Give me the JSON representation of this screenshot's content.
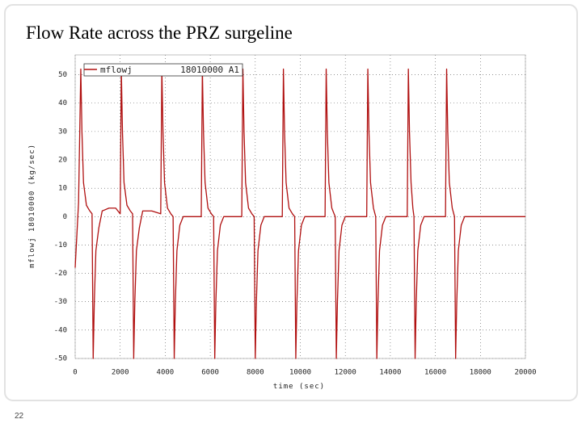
{
  "chart_data": {
    "type": "line",
    "title": "Flow Rate across the PRZ surgeline",
    "page_number": "22",
    "x_label": "time (sec)",
    "y_label": "mflowj 18010000 (kg/sec)",
    "legend_variable": "mflowj",
    "legend_component": "18010000 A1",
    "xlim": [
      0,
      20000
    ],
    "ylim": [
      -50,
      57
    ],
    "xticks": [
      0,
      2000,
      4000,
      6000,
      8000,
      10000,
      12000,
      14000,
      16000,
      18000,
      20000
    ],
    "yticks": [
      -50,
      -40,
      -30,
      -20,
      -10,
      0,
      10,
      20,
      30,
      40,
      50
    ],
    "grid": true,
    "series": [
      {
        "name": "mflowj",
        "color": "#b01010",
        "x": [
          0,
          150,
          250,
          300,
          370,
          500,
          650,
          750,
          800,
          850,
          920,
          1050,
          1200,
          1500,
          1800,
          2000,
          2050,
          2100,
          2170,
          2300,
          2450,
          2550,
          2600,
          2650,
          2720,
          2850,
          3000,
          3400,
          3800,
          3850,
          3900,
          3970,
          4100,
          4250,
          4350,
          4400,
          4450,
          4520,
          4650,
          4800,
          5600,
          5650,
          5700,
          5770,
          5900,
          6050,
          6150,
          6200,
          6250,
          6320,
          6450,
          6600,
          7400,
          7450,
          7500,
          7570,
          7700,
          7850,
          7950,
          8000,
          8050,
          8120,
          8250,
          8400,
          9200,
          9250,
          9300,
          9370,
          9500,
          9650,
          9750,
          9800,
          9850,
          9920,
          10050,
          10200,
          11100,
          11150,
          11200,
          11270,
          11400,
          11500,
          11550,
          11600,
          11650,
          11720,
          11850,
          12000,
          12950,
          13000,
          13050,
          13120,
          13250,
          13350,
          13400,
          13450,
          13520,
          13650,
          13800,
          14750,
          14800,
          14850,
          14920,
          15000,
          15050,
          15100,
          15150,
          15220,
          15350,
          15500,
          16450,
          16500,
          16550,
          16620,
          16750,
          16850,
          16900,
          16950,
          17020,
          17150,
          17300,
          20000
        ],
        "values": [
          -18,
          5,
          52,
          30,
          12,
          4,
          2,
          1,
          -50,
          -30,
          -12,
          -4,
          2,
          3,
          3,
          1,
          52,
          30,
          12,
          4,
          2,
          1,
          -50,
          -30,
          -12,
          -4,
          2,
          2,
          1,
          52,
          30,
          12,
          3,
          1,
          0,
          -50,
          -30,
          -12,
          -3,
          0,
          0,
          52,
          30,
          12,
          3,
          1,
          0,
          -50,
          -30,
          -12,
          -3,
          0,
          0,
          52,
          30,
          12,
          3,
          1,
          0,
          -50,
          -30,
          -12,
          -3,
          0,
          0,
          52,
          30,
          12,
          3,
          1,
          0,
          -50,
          -30,
          -12,
          -3,
          0,
          0,
          52,
          30,
          12,
          3,
          1,
          0,
          -50,
          -30,
          -12,
          -3,
          0,
          0,
          52,
          30,
          12,
          3,
          0,
          -50,
          -30,
          -12,
          -3,
          0,
          0,
          52,
          30,
          12,
          3,
          0,
          -50,
          -30,
          -12,
          -3,
          0,
          0,
          52,
          30,
          12,
          3,
          0,
          -50,
          -30,
          -12,
          -3,
          0,
          0
        ]
      }
    ]
  }
}
